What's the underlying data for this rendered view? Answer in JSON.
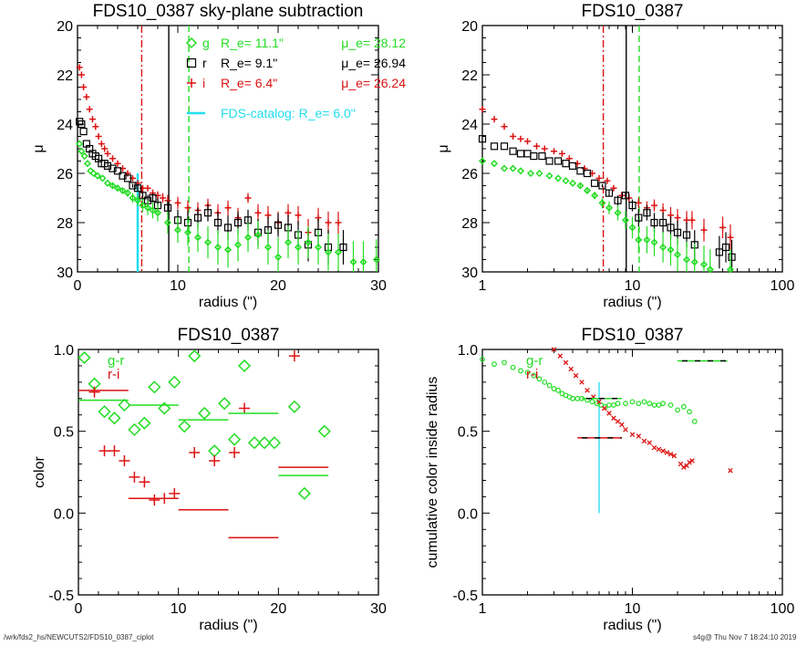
{
  "footer": {
    "path": "/wrk/fds2_hs/NEWCUTS2/FDS10_0387_ciplot",
    "stamp": "s4g@  Thu Nov  7 18:24:10 2019"
  },
  "colors": {
    "g": "#22dd22",
    "r": "#000000",
    "i": "#dd1111",
    "catalog": "#22ddee"
  },
  "chart_data": [
    {
      "id": "profile-linear",
      "type": "scatter",
      "title": "FDS10_0387 sky-plane subtraction",
      "xlabel": "radius (\")",
      "ylabel": "μ",
      "xscale": "linear",
      "xlim": [
        0,
        30
      ],
      "ylim": [
        30,
        20
      ],
      "xticks": [
        "0",
        "10",
        "20",
        "30"
      ],
      "yticks": [
        "20",
        "22",
        "24",
        "26",
        "28",
        "30"
      ],
      "legend": [
        {
          "band": "g",
          "marker": "diamond",
          "re": "R_e=  11.1\"",
          "mue": "μ_e= 28.12",
          "color": "#22dd22"
        },
        {
          "band": "r",
          "marker": "square",
          "re": "R_e=   9.1\"",
          "mue": "μ_e= 26.94",
          "color": "#000000"
        },
        {
          "band": "i",
          "marker": "plus",
          "re": "R_e=   6.4\"",
          "mue": "μ_e= 26.24",
          "color": "#dd1111"
        }
      ],
      "catalog_label": "FDS-catalog: R_e=   6.0\"",
      "vlines": [
        {
          "x": 6.4,
          "color": "#dd1111",
          "style": "dashdot"
        },
        {
          "x": 9.1,
          "color": "#000000",
          "style": "solid"
        },
        {
          "x": 11.1,
          "color": "#22dd22",
          "style": "dashed"
        },
        {
          "x": 6.0,
          "color": "#22ddee",
          "style": "solid",
          "ymin": 26.0
        }
      ],
      "series": [
        {
          "name": "i",
          "x": [
            0.2,
            0.4,
            0.6,
            0.9,
            1.2,
            1.5,
            1.8,
            2.1,
            2.4,
            2.7,
            3.0,
            3.5,
            4.0,
            4.5,
            5.0,
            5.5,
            6.0,
            6.5,
            7.0,
            7.5,
            8.0,
            8.5,
            9.0,
            10.0,
            11.0,
            12.0,
            13.0,
            14.0,
            15.0,
            16.0,
            17.0,
            18.0,
            19.0,
            20.0,
            21.0,
            22.0,
            23.0,
            24.0,
            25.0,
            26.0
          ],
          "y": [
            21.7,
            22.0,
            22.5,
            22.9,
            23.4,
            23.8,
            24.1,
            24.5,
            24.8,
            25.0,
            25.2,
            25.4,
            25.6,
            25.8,
            26.0,
            26.2,
            26.4,
            26.6,
            26.6,
            26.8,
            26.9,
            27.0,
            27.1,
            27.2,
            27.4,
            27.5,
            27.3,
            27.6,
            27.4,
            27.8,
            27.0,
            27.6,
            27.7,
            28.0,
            27.6,
            27.7,
            28.4,
            27.8,
            28.0,
            28.0
          ]
        },
        {
          "name": "r",
          "x": [
            0.2,
            0.4,
            0.6,
            0.9,
            1.2,
            1.5,
            1.8,
            2.1,
            2.4,
            2.7,
            3.0,
            3.5,
            4.0,
            4.5,
            5.0,
            5.5,
            6.0,
            6.5,
            7.0,
            7.5,
            8.0,
            9.0,
            10.0,
            11.0,
            12.0,
            13.0,
            14.0,
            15.0,
            16.0,
            17.0,
            18.0,
            19.0,
            20.0,
            21.0,
            22.0,
            23.0,
            24.0,
            25.0,
            26.5
          ],
          "y": [
            23.9,
            24.0,
            24.3,
            24.8,
            25.0,
            25.2,
            25.3,
            25.4,
            25.6,
            25.6,
            25.7,
            25.8,
            25.9,
            26.1,
            26.2,
            26.5,
            26.6,
            26.9,
            27.1,
            27.0,
            27.3,
            27.4,
            27.9,
            28.0,
            27.8,
            27.6,
            28.0,
            28.2,
            28.0,
            27.9,
            28.4,
            28.3,
            28.1,
            28.2,
            28.5,
            28.9,
            28.4,
            29.0,
            29.0
          ]
        },
        {
          "name": "g",
          "x": [
            0.2,
            0.4,
            0.7,
            1.0,
            1.3,
            1.6,
            2.0,
            2.5,
            3.0,
            3.5,
            4.0,
            4.5,
            5.0,
            5.5,
            6.0,
            6.5,
            7.0,
            7.5,
            8.0,
            9.0,
            10.0,
            11.0,
            12.0,
            13.0,
            14.0,
            15.0,
            16.0,
            17.0,
            18.0,
            19.0,
            20.0,
            21.0,
            22.0,
            23.0,
            24.0,
            25.0,
            26.0,
            27.5,
            28.5,
            29.8
          ],
          "y": [
            24.8,
            25.1,
            25.3,
            25.6,
            25.9,
            26.0,
            26.1,
            26.2,
            26.4,
            26.5,
            26.6,
            26.7,
            26.8,
            27.0,
            27.1,
            27.3,
            27.4,
            27.5,
            27.6,
            28.0,
            28.3,
            28.4,
            28.6,
            28.8,
            29.0,
            29.1,
            28.9,
            28.6,
            28.5,
            29.0,
            29.4,
            28.8,
            29.0,
            28.8,
            29.0,
            29.2,
            29.2,
            29.6,
            29.6,
            29.5
          ]
        }
      ]
    },
    {
      "id": "profile-log",
      "type": "scatter",
      "title": "FDS10_0387",
      "xlabel": "radius (\")",
      "ylabel": "μ",
      "xscale": "log",
      "xlim": [
        1,
        100
      ],
      "ylim": [
        30,
        20
      ],
      "xticks": [
        "1",
        "10",
        "100"
      ],
      "yticks": [
        "20",
        "22",
        "24",
        "26",
        "28",
        "30"
      ],
      "vlines": [
        {
          "x": 6.4,
          "color": "#dd1111",
          "style": "dashdot"
        },
        {
          "x": 9.1,
          "color": "#000000",
          "style": "solid"
        },
        {
          "x": 11.1,
          "color": "#22dd22",
          "style": "dashed"
        }
      ],
      "series": [
        {
          "name": "i",
          "x": [
            1.0,
            1.2,
            1.4,
            1.6,
            1.8,
            2.0,
            2.3,
            2.6,
            3.0,
            3.4,
            3.8,
            4.3,
            4.8,
            5.4,
            6.0,
            6.8,
            7.5,
            8.5,
            9.5,
            11,
            12.5,
            14,
            16,
            18,
            20,
            23,
            25,
            30,
            40,
            45
          ],
          "y": [
            23.4,
            23.8,
            24.1,
            24.5,
            24.6,
            24.7,
            24.9,
            25.0,
            25.1,
            25.2,
            25.4,
            25.6,
            25.8,
            26.0,
            26.2,
            26.3,
            26.6,
            26.9,
            27.0,
            27.2,
            27.4,
            27.3,
            27.5,
            27.7,
            27.8,
            27.9,
            27.9,
            28.3,
            28.2,
            28.6
          ]
        },
        {
          "name": "r",
          "x": [
            1.0,
            1.2,
            1.4,
            1.6,
            1.8,
            2.0,
            2.2,
            2.5,
            2.8,
            3.2,
            3.6,
            4.0,
            4.5,
            5.0,
            5.6,
            6.3,
            7.0,
            8.0,
            9.0,
            10,
            11,
            12.5,
            14,
            16,
            18,
            20,
            23,
            26,
            38,
            42,
            46
          ],
          "y": [
            24.6,
            24.9,
            24.9,
            25.1,
            25.2,
            25.2,
            25.3,
            25.3,
            25.5,
            25.5,
            25.6,
            25.7,
            25.9,
            26.0,
            26.4,
            26.5,
            26.8,
            27.1,
            26.9,
            27.3,
            27.8,
            27.6,
            28.0,
            28.0,
            28.2,
            28.4,
            28.5,
            28.9,
            29.2,
            29.0,
            29.4
          ]
        },
        {
          "name": "g",
          "x": [
            1.0,
            1.2,
            1.4,
            1.6,
            1.8,
            2.1,
            2.4,
            2.8,
            3.2,
            3.6,
            4.0,
            4.5,
            5.0,
            5.6,
            6.3,
            7.0,
            8.0,
            9.0,
            10,
            11,
            12.5,
            14,
            16,
            18,
            20,
            23,
            26,
            30,
            33,
            45
          ],
          "y": [
            25.5,
            25.6,
            25.8,
            25.8,
            25.9,
            26.0,
            26.0,
            26.1,
            26.2,
            26.3,
            26.4,
            26.5,
            26.7,
            26.9,
            27.2,
            27.4,
            27.6,
            27.9,
            28.2,
            28.7,
            28.7,
            28.8,
            29.0,
            29.1,
            29.3,
            29.5,
            29.6,
            29.7,
            29.9,
            29.9
          ]
        }
      ]
    },
    {
      "id": "color-binned",
      "type": "scatter",
      "title": "FDS10_0387",
      "xlabel": "radius (\")",
      "ylabel": "color",
      "xscale": "linear",
      "xlim": [
        0,
        30
      ],
      "ylim": [
        -0.5,
        1.0
      ],
      "xticks": [
        "0",
        "10",
        "20",
        "30"
      ],
      "yticks": [
        "-0.5",
        "0.0",
        "0.5",
        "1.0"
      ],
      "legend": [
        {
          "label": "g-r",
          "color": "#22dd22"
        },
        {
          "label": "r-i",
          "color": "#dd1111"
        }
      ],
      "series": [
        {
          "name": "g-r",
          "marker": "diamond",
          "x": [
            0.6,
            1.6,
            2.6,
            3.6,
            4.6,
            5.6,
            6.6,
            7.6,
            8.6,
            9.6,
            10.6,
            11.6,
            12.6,
            13.6,
            14.6,
            15.6,
            16.6,
            17.6,
            18.6,
            19.6,
            21.6,
            22.6,
            24.6
          ],
          "y": [
            0.95,
            0.79,
            0.62,
            0.58,
            0.66,
            0.51,
            0.55,
            0.77,
            0.64,
            0.8,
            0.53,
            0.96,
            0.61,
            0.38,
            0.67,
            0.45,
            0.9,
            0.43,
            0.43,
            0.43,
            0.65,
            0.12,
            0.5
          ]
        },
        {
          "name": "r-i",
          "marker": "plus",
          "x": [
            1.6,
            2.6,
            3.6,
            4.6,
            5.6,
            6.6,
            7.6,
            8.6,
            9.6,
            11.6,
            13.6,
            15.6,
            16.6,
            21.6
          ],
          "y": [
            0.74,
            0.38,
            0.38,
            0.32,
            0.22,
            0.19,
            0.08,
            0.09,
            0.12,
            0.37,
            0.32,
            0.37,
            0.64,
            0.96
          ]
        },
        {
          "name": "g-r-bins",
          "type": "hline",
          "segments": [
            {
              "x0": 0,
              "x1": 5,
              "y": 0.69
            },
            {
              "x0": 5,
              "x1": 10,
              "y": 0.66
            },
            {
              "x0": 10,
              "x1": 15,
              "y": 0.57
            },
            {
              "x0": 15,
              "x1": 20,
              "y": 0.61
            },
            {
              "x0": 20,
              "x1": 25,
              "y": 0.23
            }
          ]
        },
        {
          "name": "r-i-bins",
          "type": "hline",
          "segments": [
            {
              "x0": 0,
              "x1": 5,
              "y": 0.75
            },
            {
              "x0": 5,
              "x1": 10,
              "y": 0.09
            },
            {
              "x0": 10,
              "x1": 15,
              "y": 0.02
            },
            {
              "x0": 15,
              "x1": 20,
              "y": -0.15
            },
            {
              "x0": 20,
              "x1": 25,
              "y": 0.28
            }
          ]
        }
      ]
    },
    {
      "id": "cumulative-color",
      "type": "scatter",
      "title": "FDS10_0387",
      "xlabel": "radius (\")",
      "ylabel": "cumulative color inside radius",
      "xscale": "log",
      "xlim": [
        1,
        100
      ],
      "ylim": [
        -0.5,
        1.0
      ],
      "xticks": [
        "1",
        "10",
        "100"
      ],
      "yticks": [
        "-0.5",
        "0.0",
        "0.5",
        "1.0"
      ],
      "legend": [
        {
          "label": "g-r",
          "color": "#22dd22"
        },
        {
          "label": "r-i",
          "color": "#dd1111"
        }
      ],
      "vline": {
        "x": 6.0,
        "y0": 0.0,
        "y1": 0.8,
        "color": "#22ddee"
      },
      "series": [
        {
          "name": "g-r",
          "marker": "circle",
          "x": [
            1.0,
            1.2,
            1.4,
            1.6,
            1.8,
            2.0,
            2.2,
            2.4,
            2.6,
            2.8,
            3.0,
            3.2,
            3.4,
            3.6,
            3.8,
            4.0,
            4.3,
            4.6,
            5.0,
            5.4,
            5.8,
            6.2,
            6.6,
            7.0,
            7.5,
            8.0,
            9.0,
            10,
            11,
            12,
            13,
            14,
            15,
            16,
            18,
            20,
            22,
            24,
            26
          ],
          "y": [
            0.94,
            0.91,
            0.92,
            0.89,
            0.87,
            0.86,
            0.84,
            0.82,
            0.8,
            0.78,
            0.76,
            0.75,
            0.73,
            0.72,
            0.71,
            0.7,
            0.7,
            0.7,
            0.69,
            0.68,
            0.67,
            0.66,
            0.65,
            0.66,
            0.66,
            0.67,
            0.67,
            0.68,
            0.67,
            0.68,
            0.67,
            0.66,
            0.66,
            0.67,
            0.66,
            0.63,
            0.65,
            0.62,
            0.56
          ]
        },
        {
          "name": "r-i",
          "marker": "x",
          "x": [
            3.0,
            3.3,
            3.6,
            3.9,
            4.2,
            4.6,
            5.0,
            5.5,
            6.0,
            6.5,
            7.0,
            7.5,
            8.0,
            8.5,
            9.0,
            10,
            11,
            12,
            13,
            14,
            15,
            16,
            17,
            18,
            19,
            21,
            22,
            23,
            24,
            25,
            45
          ],
          "y": [
            1.0,
            0.96,
            0.92,
            0.88,
            0.84,
            0.8,
            0.75,
            0.71,
            0.68,
            0.64,
            0.61,
            0.58,
            0.56,
            0.54,
            0.51,
            0.48,
            0.47,
            0.44,
            0.43,
            0.4,
            0.39,
            0.38,
            0.37,
            0.36,
            0.35,
            0.3,
            0.28,
            0.29,
            0.31,
            0.32,
            0.26
          ]
        },
        {
          "name": "g-r-ref",
          "type": "hline",
          "segments": [
            {
              "x0": 4.6,
              "x1": 8.5,
              "y": 0.7
            },
            {
              "x0": 20,
              "x1": 43,
              "y": 0.93
            }
          ]
        },
        {
          "name": "r-i-ref",
          "type": "hline",
          "segments": [
            {
              "x0": 4.3,
              "x1": 8.5,
              "y": 0.46
            }
          ]
        }
      ]
    }
  ]
}
